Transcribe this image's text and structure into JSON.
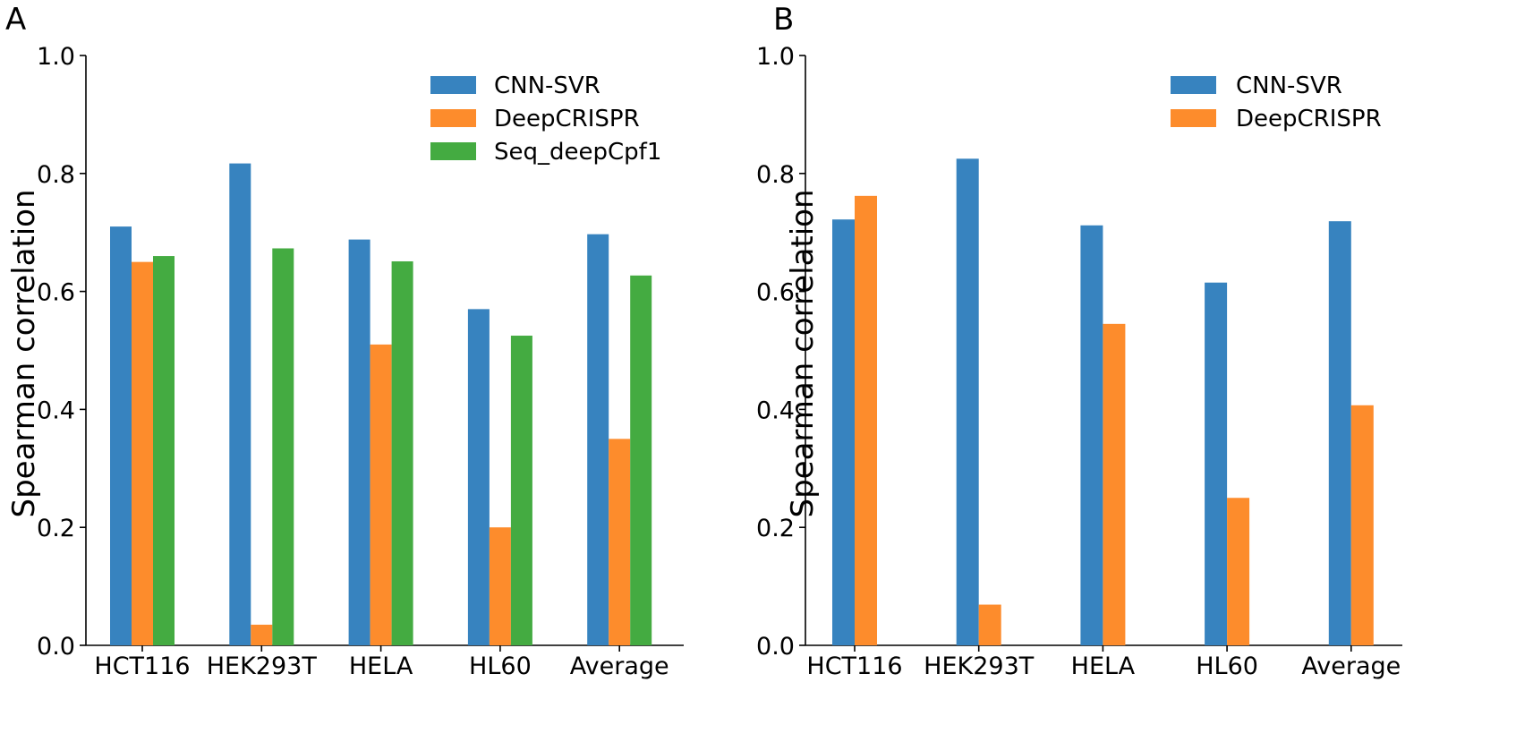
{
  "colors": {
    "cnn_svr": "#3783bf",
    "deepcrispr": "#fd8c2c",
    "seq_deepcpf1": "#44ab41"
  },
  "chart_data": [
    {
      "type": "bar",
      "panel_label": "A",
      "categories": [
        "HCT116",
        "HEK293T",
        "HELA",
        "HL60",
        "Average"
      ],
      "series": [
        {
          "name": "CNN-SVR",
          "color": "#3783bf",
          "values": [
            0.71,
            0.817,
            0.688,
            0.57,
            0.697
          ]
        },
        {
          "name": "DeepCRISPR",
          "color": "#fd8c2c",
          "values": [
            0.65,
            0.035,
            0.51,
            0.2,
            0.35
          ]
        },
        {
          "name": "Seq_deepCpf1",
          "color": "#44ab41",
          "values": [
            0.66,
            0.673,
            0.651,
            0.525,
            0.627
          ]
        }
      ],
      "ylabel": "Spearman correlation",
      "xlabel": "",
      "ylim": [
        0,
        1.0
      ],
      "yticks": [
        "0.0",
        "0.2",
        "0.4",
        "0.6",
        "0.8",
        "1.0"
      ],
      "legend_position": "top-right"
    },
    {
      "type": "bar",
      "panel_label": "B",
      "categories": [
        "HCT116",
        "HEK293T",
        "HELA",
        "HL60",
        "Average"
      ],
      "series": [
        {
          "name": "CNN-SVR",
          "color": "#3783bf",
          "values": [
            0.722,
            0.825,
            0.712,
            0.615,
            0.719
          ]
        },
        {
          "name": "DeepCRISPR",
          "color": "#fd8c2c",
          "values": [
            0.762,
            0.069,
            0.545,
            0.25,
            0.407
          ]
        }
      ],
      "ylabel": "Spearman correlation",
      "xlabel": "",
      "ylim": [
        0,
        1.0
      ],
      "yticks": [
        "0.0",
        "0.2",
        "0.4",
        "0.6",
        "0.8",
        "1.0"
      ],
      "legend_position": "top-right"
    }
  ]
}
